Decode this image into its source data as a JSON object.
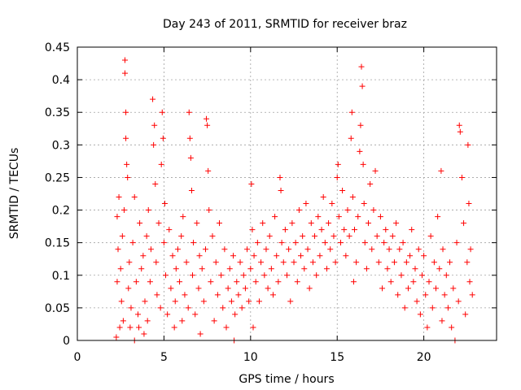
{
  "chart_data": {
    "type": "scatter",
    "title": "Day 243 of 2011, SRMTID for receiver braz",
    "xlabel": "GPS time / hours",
    "ylabel": "SRMTID / TECUs",
    "xlim": [
      0,
      24.2
    ],
    "ylim": [
      0,
      0.45
    ],
    "grid": true,
    "marker": "+",
    "colors": {
      "points": "#ff0000",
      "grid": "#a0a0a0",
      "axes": "#000000"
    },
    "x_tick_values": [
      0,
      5,
      10,
      15,
      20
    ],
    "x_tick_labels": [
      "0",
      "5",
      "10",
      "15",
      "20"
    ],
    "y_tick_values": [
      0,
      0.05,
      0.1,
      0.15,
      0.2,
      0.25,
      0.3,
      0.35,
      0.4,
      0.45
    ],
    "y_tick_labels": [
      "0",
      "0.05",
      "0.1",
      "0.15",
      "0.2",
      "0.25",
      "0.3",
      "0.35",
      "0.4",
      "0.45"
    ],
    "series": [
      {
        "name": "braz",
        "points": [
          [
            2.25,
            0.005
          ],
          [
            2.3,
            0.19
          ],
          [
            2.3,
            0.09
          ],
          [
            2.35,
            0.14
          ],
          [
            2.4,
            0.22
          ],
          [
            2.45,
            0.02
          ],
          [
            2.5,
            0.11
          ],
          [
            2.55,
            0.06
          ],
          [
            2.6,
            0.16
          ],
          [
            2.65,
            0.03
          ],
          [
            2.7,
            0.2
          ],
          [
            2.75,
            0.43
          ],
          [
            2.75,
            0.41
          ],
          [
            2.8,
            0.35
          ],
          [
            2.8,
            0.31
          ],
          [
            2.85,
            0.27
          ],
          [
            2.9,
            0.25
          ],
          [
            2.95,
            0.08
          ],
          [
            3.0,
            0.12
          ],
          [
            3.05,
            0.02
          ],
          [
            3.1,
            0.05
          ],
          [
            3.2,
            0.15
          ],
          [
            3.3,
            0.0
          ],
          [
            3.3,
            0.22
          ],
          [
            3.4,
            0.09
          ],
          [
            3.5,
            0.04
          ],
          [
            3.55,
            0.02
          ],
          [
            3.6,
            0.18
          ],
          [
            3.7,
            0.11
          ],
          [
            3.8,
            0.13
          ],
          [
            3.85,
            0.01
          ],
          [
            3.9,
            0.06
          ],
          [
            4.0,
            0.16
          ],
          [
            4.05,
            0.03
          ],
          [
            4.1,
            0.2
          ],
          [
            4.2,
            0.09
          ],
          [
            4.25,
            0.14
          ],
          [
            4.35,
            0.37
          ],
          [
            4.4,
            0.3
          ],
          [
            4.45,
            0.33
          ],
          [
            4.5,
            0.24
          ],
          [
            4.55,
            0.12
          ],
          [
            4.6,
            0.07
          ],
          [
            4.7,
            0.18
          ],
          [
            4.8,
            0.05
          ],
          [
            4.85,
            0.27
          ],
          [
            4.9,
            0.35
          ],
          [
            4.95,
            0.31
          ],
          [
            5.0,
            0.15
          ],
          [
            5.05,
            0.21
          ],
          [
            5.1,
            0.1
          ],
          [
            5.2,
            0.04
          ],
          [
            5.3,
            0.17
          ],
          [
            5.4,
            0.08
          ],
          [
            5.5,
            0.13
          ],
          [
            5.6,
            0.02
          ],
          [
            5.65,
            0.06
          ],
          [
            5.7,
            0.11
          ],
          [
            5.8,
            0.14
          ],
          [
            5.9,
            0.09
          ],
          [
            6.0,
            0.16
          ],
          [
            6.05,
            0.03
          ],
          [
            6.1,
            0.19
          ],
          [
            6.2,
            0.07
          ],
          [
            6.3,
            0.12
          ],
          [
            6.4,
            0.05
          ],
          [
            6.45,
            0.35
          ],
          [
            6.5,
            0.31
          ],
          [
            6.55,
            0.28
          ],
          [
            6.6,
            0.23
          ],
          [
            6.65,
            0.1
          ],
          [
            6.7,
            0.15
          ],
          [
            6.8,
            0.04
          ],
          [
            6.9,
            0.18
          ],
          [
            7.0,
            0.08
          ],
          [
            7.05,
            0.13
          ],
          [
            7.1,
            0.01
          ],
          [
            7.2,
            0.11
          ],
          [
            7.3,
            0.06
          ],
          [
            7.4,
            0.14
          ],
          [
            7.45,
            0.34
          ],
          [
            7.5,
            0.33
          ],
          [
            7.55,
            0.26
          ],
          [
            7.6,
            0.2
          ],
          [
            7.7,
            0.09
          ],
          [
            7.8,
            0.16
          ],
          [
            7.9,
            0.03
          ],
          [
            8.0,
            0.12
          ],
          [
            8.1,
            0.07
          ],
          [
            8.2,
            0.18
          ],
          [
            8.3,
            0.1
          ],
          [
            8.4,
            0.05
          ],
          [
            8.5,
            0.14
          ],
          [
            8.6,
            0.02
          ],
          [
            8.7,
            0.08
          ],
          [
            8.8,
            0.11
          ],
          [
            8.9,
            0.06
          ],
          [
            9.0,
            0.13
          ],
          [
            9.05,
            0.0
          ],
          [
            9.1,
            0.04
          ],
          [
            9.2,
            0.09
          ],
          [
            9.3,
            0.07
          ],
          [
            9.4,
            0.12
          ],
          [
            9.5,
            0.05
          ],
          [
            9.6,
            0.1
          ],
          [
            9.7,
            0.08
          ],
          [
            9.8,
            0.14
          ],
          [
            9.9,
            0.06
          ],
          [
            10.0,
            0.11
          ],
          [
            10.05,
            0.24
          ],
          [
            10.1,
            0.17
          ],
          [
            10.15,
            0.02
          ],
          [
            10.2,
            0.13
          ],
          [
            10.3,
            0.09
          ],
          [
            10.4,
            0.15
          ],
          [
            10.5,
            0.06
          ],
          [
            10.6,
            0.12
          ],
          [
            10.7,
            0.18
          ],
          [
            10.8,
            0.1
          ],
          [
            10.9,
            0.14
          ],
          [
            11.0,
            0.08
          ],
          [
            11.1,
            0.16
          ],
          [
            11.2,
            0.11
          ],
          [
            11.3,
            0.07
          ],
          [
            11.4,
            0.19
          ],
          [
            11.5,
            0.13
          ],
          [
            11.6,
            0.09
          ],
          [
            11.7,
            0.25
          ],
          [
            11.75,
            0.23
          ],
          [
            11.8,
            0.15
          ],
          [
            11.9,
            0.12
          ],
          [
            12.0,
            0.17
          ],
          [
            12.1,
            0.1
          ],
          [
            12.2,
            0.14
          ],
          [
            12.3,
            0.06
          ],
          [
            12.4,
            0.18
          ],
          [
            12.5,
            0.12
          ],
          [
            12.6,
            0.15
          ],
          [
            12.7,
            0.09
          ],
          [
            12.8,
            0.2
          ],
          [
            12.9,
            0.13
          ],
          [
            13.0,
            0.16
          ],
          [
            13.1,
            0.11
          ],
          [
            13.2,
            0.21
          ],
          [
            13.3,
            0.14
          ],
          [
            13.4,
            0.08
          ],
          [
            13.5,
            0.18
          ],
          [
            13.6,
            0.12
          ],
          [
            13.7,
            0.16
          ],
          [
            13.8,
            0.1
          ],
          [
            13.9,
            0.19
          ],
          [
            14.0,
            0.13
          ],
          [
            14.1,
            0.17
          ],
          [
            14.2,
            0.22
          ],
          [
            14.3,
            0.15
          ],
          [
            14.4,
            0.11
          ],
          [
            14.5,
            0.18
          ],
          [
            14.6,
            0.14
          ],
          [
            14.7,
            0.21
          ],
          [
            14.8,
            0.16
          ],
          [
            14.9,
            0.12
          ],
          [
            15.0,
            0.25
          ],
          [
            15.05,
            0.27
          ],
          [
            15.1,
            0.19
          ],
          [
            15.2,
            0.15
          ],
          [
            15.3,
            0.23
          ],
          [
            15.4,
            0.17
          ],
          [
            15.5,
            0.13
          ],
          [
            15.6,
            0.2
          ],
          [
            15.7,
            0.16
          ],
          [
            15.8,
            0.31
          ],
          [
            15.85,
            0.35
          ],
          [
            15.9,
            0.22
          ],
          [
            15.95,
            0.09
          ],
          [
            16.0,
            0.17
          ],
          [
            16.1,
            0.12
          ],
          [
            16.2,
            0.19
          ],
          [
            16.3,
            0.29
          ],
          [
            16.35,
            0.33
          ],
          [
            16.4,
            0.42
          ],
          [
            16.45,
            0.39
          ],
          [
            16.5,
            0.27
          ],
          [
            16.55,
            0.21
          ],
          [
            16.6,
            0.15
          ],
          [
            16.7,
            0.11
          ],
          [
            16.8,
            0.18
          ],
          [
            16.9,
            0.24
          ],
          [
            17.0,
            0.14
          ],
          [
            17.1,
            0.2
          ],
          [
            17.2,
            0.26
          ],
          [
            17.3,
            0.16
          ],
          [
            17.4,
            0.12
          ],
          [
            17.5,
            0.19
          ],
          [
            17.6,
            0.08
          ],
          [
            17.7,
            0.15
          ],
          [
            17.8,
            0.17
          ],
          [
            17.9,
            0.11
          ],
          [
            18.0,
            0.14
          ],
          [
            18.1,
            0.09
          ],
          [
            18.2,
            0.16
          ],
          [
            18.3,
            0.12
          ],
          [
            18.4,
            0.18
          ],
          [
            18.5,
            0.07
          ],
          [
            18.6,
            0.14
          ],
          [
            18.7,
            0.1
          ],
          [
            18.8,
            0.15
          ],
          [
            18.9,
            0.05
          ],
          [
            19.0,
            0.12
          ],
          [
            19.1,
            0.08
          ],
          [
            19.2,
            0.13
          ],
          [
            19.3,
            0.17
          ],
          [
            19.4,
            0.09
          ],
          [
            19.5,
            0.11
          ],
          [
            19.6,
            0.06
          ],
          [
            19.7,
            0.14
          ],
          [
            19.8,
            0.04
          ],
          [
            19.9,
            0.1
          ],
          [
            20.0,
            0.13
          ],
          [
            20.1,
            0.07
          ],
          [
            20.2,
            0.02
          ],
          [
            20.3,
            0.09
          ],
          [
            20.4,
            0.16
          ],
          [
            20.5,
            0.05
          ],
          [
            20.6,
            0.12
          ],
          [
            20.7,
            0.08
          ],
          [
            20.8,
            0.19
          ],
          [
            20.9,
            0.11
          ],
          [
            21.0,
            0.26
          ],
          [
            21.05,
            0.03
          ],
          [
            21.1,
            0.14
          ],
          [
            21.2,
            0.07
          ],
          [
            21.3,
            0.1
          ],
          [
            21.4,
            0.05
          ],
          [
            21.5,
            0.12
          ],
          [
            21.6,
            0.02
          ],
          [
            21.7,
            0.08
          ],
          [
            21.8,
            0.0
          ],
          [
            21.9,
            0.15
          ],
          [
            22.0,
            0.06
          ],
          [
            22.05,
            0.33
          ],
          [
            22.1,
            0.32
          ],
          [
            22.2,
            0.25
          ],
          [
            22.3,
            0.18
          ],
          [
            22.4,
            0.04
          ],
          [
            22.5,
            0.12
          ],
          [
            22.55,
            0.3
          ],
          [
            22.6,
            0.21
          ],
          [
            22.65,
            0.09
          ],
          [
            22.7,
            0.14
          ],
          [
            22.8,
            0.07
          ]
        ]
      }
    ]
  }
}
